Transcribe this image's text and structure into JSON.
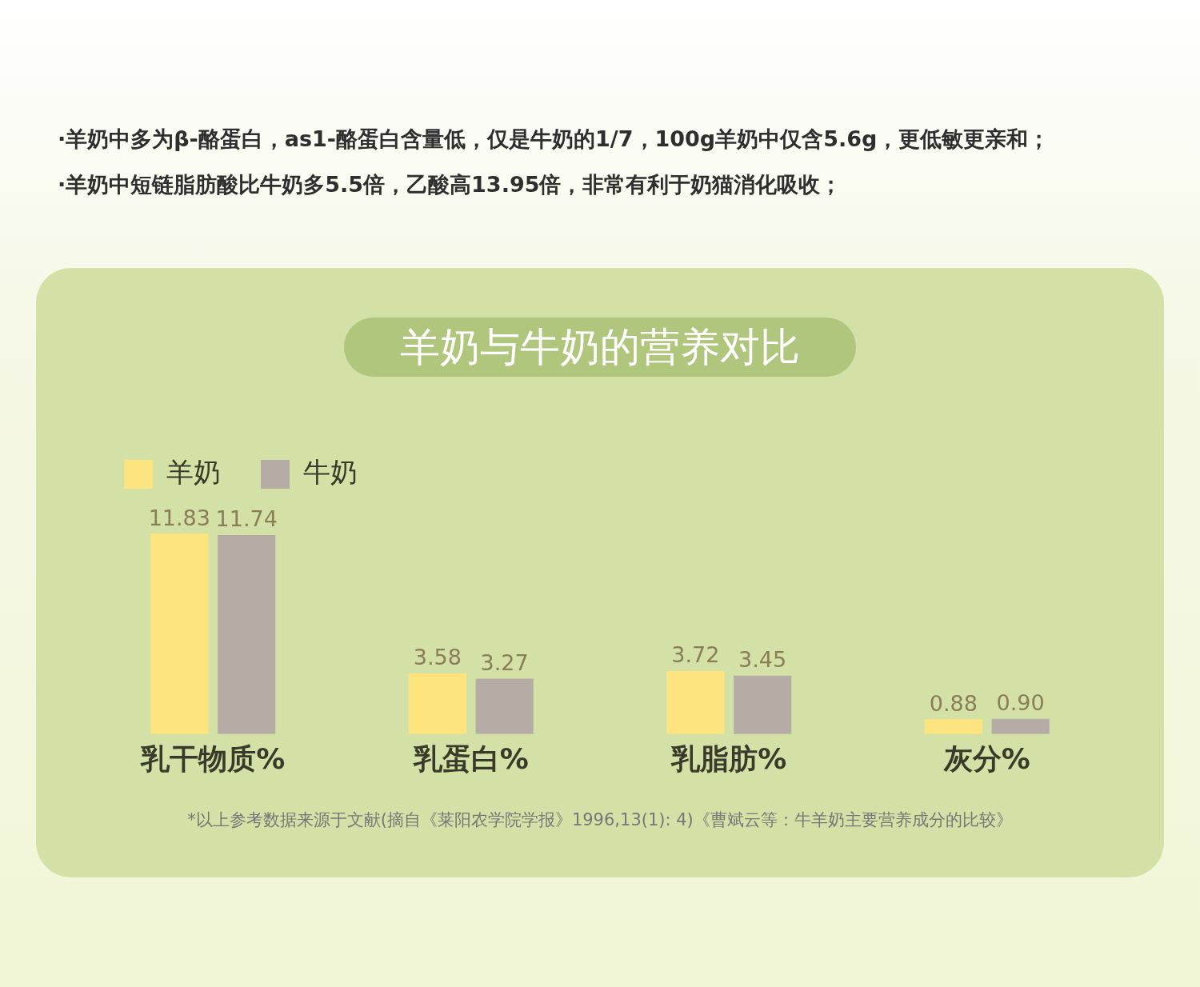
{
  "chart_data": {
    "type": "bar",
    "title": "羊奶与牛奶的营养对比",
    "annotations": [
      "·羊奶中多为β-酪蛋白，as1-酪蛋白含量低，仅是牛奶的1/7，100g羊奶中仅含5.6g，更低敏更亲和；",
      "·羊奶中短链脂肪酸比牛奶多5.5倍，乙酸高13.95倍，非常有利于奶猫消化吸收；",
      "*以上参考数据来源于文献(摘自《莱阳农学院学报》1996,13(1): 4)《曹斌云等：牛羊奶主要营养成分的比较》"
    ],
    "categories": [
      "乳干物质%",
      "乳蛋白%",
      "乳脂肪%",
      "灰分%"
    ],
    "series": [
      {
        "name": "羊奶",
        "color": "#fde47f",
        "values": [
          11.83,
          3.58,
          3.72,
          0.88
        ],
        "value_labels": [
          "11.83",
          "3.58",
          "3.72",
          "0.88"
        ]
      },
      {
        "name": "牛奶",
        "color": "#b5aca6",
        "values": [
          11.74,
          3.27,
          3.45,
          0.9
        ],
        "value_labels": [
          "11.74",
          "3.27",
          "3.45",
          "0.90"
        ]
      }
    ],
    "legend": "top left"
  }
}
